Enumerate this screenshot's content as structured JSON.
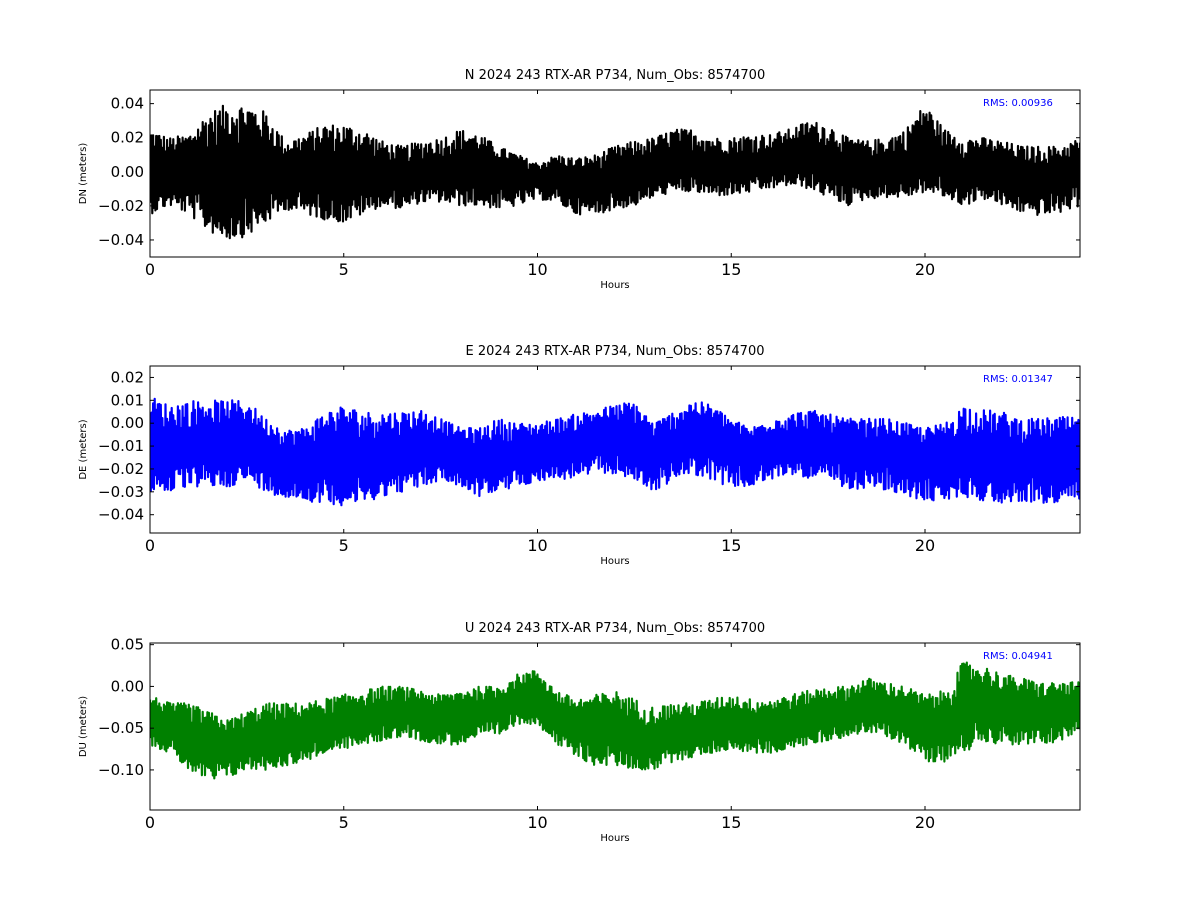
{
  "chart_data": [
    {
      "type": "line",
      "title": "N 2024 243 RTX-AR  P734, Num_Obs: 8574700",
      "xlabel": "Hours",
      "ylabel": "DN (meters)",
      "color": "#000000",
      "xlim": [
        0,
        24
      ],
      "ylim": [
        -0.05,
        0.048
      ],
      "xticks": [
        0,
        5,
        10,
        15,
        20
      ],
      "yticks": [
        -0.04,
        -0.02,
        0.0,
        0.02,
        0.04
      ],
      "ytick_labels": [
        "−0.04",
        "−0.02",
        "0.00",
        "0.02",
        "0.04"
      ],
      "grid": false,
      "annotation": "RMS:  0.00936",
      "annotation_color": "#0000ff",
      "series": [
        {
          "x": [
            0,
            0.5,
            1,
            1.5,
            2,
            2.5,
            3,
            3.5,
            4,
            4.5,
            5,
            5.5,
            6,
            6.5,
            7,
            7.5,
            8,
            8.5,
            9,
            9.5,
            10,
            10.5,
            11,
            11.5,
            12,
            12.5,
            13,
            13.5,
            14,
            14.5,
            15,
            15.5,
            16,
            16.5,
            17,
            17.5,
            18,
            18.5,
            19,
            19.5,
            20,
            20.5,
            21,
            21.5,
            22,
            22.5,
            23,
            23.5,
            24
          ],
          "mean": [
            0.0,
            0.0,
            0.0,
            -0.002,
            0.0,
            0.0,
            -0.002,
            -0.002,
            0.0,
            0.0,
            -0.004,
            -0.002,
            -0.003,
            -0.004,
            -0.002,
            0.0,
            0.0,
            0.0,
            -0.002,
            -0.002,
            -0.004,
            -0.003,
            -0.007,
            -0.006,
            -0.004,
            -0.003,
            0.0,
            0.003,
            0.004,
            0.002,
            0.003,
            0.002,
            0.004,
            0.006,
            0.008,
            0.004,
            0.002,
            0.0,
            0.0,
            0.002,
            0.008,
            0.004,
            0.0,
            0.002,
            -0.002,
            -0.004,
            -0.004,
            -0.003,
            0.0
          ],
          "upper": [
            0.025,
            0.02,
            0.022,
            0.035,
            0.04,
            0.04,
            0.035,
            0.018,
            0.022,
            0.028,
            0.028,
            0.025,
            0.018,
            0.015,
            0.018,
            0.02,
            0.025,
            0.022,
            0.015,
            0.01,
            0.005,
            0.01,
            0.008,
            0.01,
            0.015,
            0.018,
            0.02,
            0.025,
            0.025,
            0.02,
            0.02,
            0.022,
            0.022,
            0.025,
            0.03,
            0.028,
            0.02,
            0.018,
            0.02,
            0.025,
            0.04,
            0.025,
            0.02,
            0.02,
            0.018,
            0.015,
            0.015,
            0.015,
            0.02
          ],
          "lower": [
            -0.025,
            -0.02,
            -0.025,
            -0.035,
            -0.04,
            -0.038,
            -0.03,
            -0.022,
            -0.025,
            -0.028,
            -0.03,
            -0.025,
            -0.02,
            -0.022,
            -0.018,
            -0.018,
            -0.02,
            -0.02,
            -0.022,
            -0.02,
            -0.016,
            -0.018,
            -0.025,
            -0.025,
            -0.022,
            -0.02,
            -0.015,
            -0.012,
            -0.012,
            -0.014,
            -0.014,
            -0.012,
            -0.01,
            -0.008,
            -0.01,
            -0.015,
            -0.02,
            -0.016,
            -0.015,
            -0.015,
            -0.012,
            -0.015,
            -0.02,
            -0.016,
            -0.02,
            -0.024,
            -0.026,
            -0.024,
            -0.02
          ]
        }
      ]
    },
    {
      "type": "line",
      "title": "E 2024 243 RTX-AR  P734, Num_Obs: 8574700",
      "xlabel": "Hours",
      "ylabel": "DE (meters)",
      "color": "#0000ff",
      "xlim": [
        0,
        24
      ],
      "ylim": [
        -0.048,
        0.025
      ],
      "xticks": [
        0,
        5,
        10,
        15,
        20
      ],
      "yticks": [
        -0.04,
        -0.03,
        -0.02,
        -0.01,
        0.0,
        0.01,
        0.02
      ],
      "ytick_labels": [
        "−0.04",
        "−0.03",
        "−0.02",
        "−0.01",
        "0.00",
        "0.01",
        "0.02"
      ],
      "grid": false,
      "annotation": "RMS:  0.01347",
      "annotation_color": "#0000ff",
      "series": [
        {
          "x": [
            0,
            0.5,
            1,
            1.5,
            2,
            2.5,
            3,
            3.5,
            4,
            4.5,
            5,
            5.5,
            6,
            6.5,
            7,
            7.5,
            8,
            8.5,
            9,
            9.5,
            10,
            10.5,
            11,
            11.5,
            12,
            12.5,
            13,
            13.5,
            14,
            14.5,
            15,
            15.5,
            16,
            16.5,
            17,
            17.5,
            18,
            18.5,
            19,
            19.5,
            20,
            20.5,
            21,
            21.5,
            22,
            22.5,
            23,
            23.5,
            24
          ],
          "mean": [
            -0.01,
            -0.012,
            -0.011,
            -0.01,
            -0.008,
            -0.01,
            -0.013,
            -0.015,
            -0.016,
            -0.016,
            -0.015,
            -0.016,
            -0.014,
            -0.012,
            -0.011,
            -0.01,
            -0.012,
            -0.016,
            -0.015,
            -0.013,
            -0.012,
            -0.01,
            -0.01,
            -0.008,
            -0.007,
            -0.01,
            -0.013,
            -0.01,
            -0.006,
            -0.007,
            -0.011,
            -0.014,
            -0.01,
            -0.01,
            -0.01,
            -0.01,
            -0.013,
            -0.012,
            -0.012,
            -0.015,
            -0.016,
            -0.017,
            -0.013,
            -0.015,
            -0.016,
            -0.016,
            -0.016,
            -0.017,
            -0.015
          ],
          "upper": [
            0.012,
            0.008,
            0.01,
            0.01,
            0.01,
            0.01,
            0.002,
            -0.003,
            -0.002,
            0.005,
            0.008,
            0.005,
            0.005,
            0.005,
            0.006,
            0.002,
            -0.002,
            -0.002,
            0.002,
            0.0,
            0.0,
            0.002,
            0.004,
            0.006,
            0.008,
            0.01,
            0.0,
            0.005,
            0.01,
            0.008,
            0.002,
            -0.002,
            0.002,
            0.004,
            0.006,
            0.004,
            0.002,
            0.002,
            0.002,
            0.0,
            -0.002,
            0.0,
            0.008,
            0.006,
            0.005,
            0.002,
            0.002,
            0.003,
            0.002
          ],
          "lower": [
            -0.03,
            -0.03,
            -0.028,
            -0.028,
            -0.028,
            -0.025,
            -0.03,
            -0.033,
            -0.034,
            -0.035,
            -0.036,
            -0.035,
            -0.032,
            -0.03,
            -0.028,
            -0.025,
            -0.028,
            -0.032,
            -0.03,
            -0.028,
            -0.025,
            -0.025,
            -0.024,
            -0.022,
            -0.022,
            -0.025,
            -0.03,
            -0.025,
            -0.022,
            -0.025,
            -0.028,
            -0.028,
            -0.025,
            -0.022,
            -0.024,
            -0.025,
            -0.03,
            -0.028,
            -0.03,
            -0.032,
            -0.034,
            -0.034,
            -0.032,
            -0.034,
            -0.035,
            -0.034,
            -0.035,
            -0.036,
            -0.034
          ]
        }
      ]
    },
    {
      "type": "line",
      "title": "U 2024 243 RTX-AR  P734, Num_Obs: 8574700",
      "xlabel": "Hours",
      "ylabel": "DU (meters)",
      "color": "#008000",
      "xlim": [
        0,
        24
      ],
      "ylim": [
        -0.148,
        0.052
      ],
      "xticks": [
        0,
        5,
        10,
        15,
        20
      ],
      "yticks": [
        -0.1,
        -0.05,
        0.0,
        0.05
      ],
      "ytick_labels": [
        "−0.10",
        "−0.05",
        "0.00",
        "0.05"
      ],
      "grid": false,
      "annotation": "RMS:  0.04941",
      "annotation_color": "#0000ff",
      "series": [
        {
          "x": [
            0,
            0.5,
            1,
            1.5,
            2,
            2.5,
            3,
            3.5,
            4,
            4.5,
            5,
            5.5,
            6,
            6.5,
            7,
            7.5,
            8,
            8.5,
            9,
            9.5,
            10,
            10.5,
            11,
            11.5,
            12,
            12.5,
            13,
            13.5,
            14,
            14.5,
            15,
            15.5,
            16,
            16.5,
            17,
            17.5,
            18,
            18.5,
            19,
            19.5,
            20,
            20.5,
            21,
            21.5,
            22,
            22.5,
            23,
            23.5,
            24
          ],
          "mean": [
            -0.04,
            -0.05,
            -0.06,
            -0.07,
            -0.07,
            -0.065,
            -0.06,
            -0.06,
            -0.055,
            -0.05,
            -0.045,
            -0.04,
            -0.035,
            -0.03,
            -0.035,
            -0.04,
            -0.035,
            -0.03,
            -0.03,
            -0.015,
            -0.01,
            -0.04,
            -0.05,
            -0.055,
            -0.05,
            -0.06,
            -0.065,
            -0.06,
            -0.055,
            -0.05,
            -0.045,
            -0.05,
            -0.05,
            -0.045,
            -0.04,
            -0.035,
            -0.03,
            -0.025,
            -0.03,
            -0.035,
            -0.05,
            -0.05,
            -0.03,
            -0.02,
            -0.025,
            -0.03,
            -0.035,
            -0.03,
            -0.025
          ],
          "upper": [
            -0.01,
            -0.02,
            -0.02,
            -0.03,
            -0.04,
            -0.03,
            -0.02,
            -0.02,
            -0.02,
            -0.015,
            -0.01,
            -0.005,
            0.0,
            0.0,
            -0.005,
            -0.01,
            -0.005,
            0.0,
            0.0,
            0.015,
            0.02,
            -0.005,
            -0.015,
            -0.01,
            -0.005,
            -0.015,
            -0.025,
            -0.02,
            -0.02,
            -0.015,
            -0.01,
            -0.015,
            -0.015,
            -0.01,
            -0.005,
            0.0,
            0.0,
            0.01,
            0.005,
            0.0,
            -0.01,
            -0.005,
            0.03,
            0.025,
            0.015,
            0.01,
            0.005,
            0.005,
            0.005
          ],
          "lower": [
            -0.07,
            -0.08,
            -0.1,
            -0.115,
            -0.11,
            -0.1,
            -0.1,
            -0.095,
            -0.09,
            -0.08,
            -0.075,
            -0.07,
            -0.065,
            -0.06,
            -0.065,
            -0.07,
            -0.07,
            -0.06,
            -0.06,
            -0.045,
            -0.045,
            -0.07,
            -0.085,
            -0.095,
            -0.095,
            -0.1,
            -0.1,
            -0.09,
            -0.085,
            -0.08,
            -0.075,
            -0.08,
            -0.08,
            -0.075,
            -0.07,
            -0.065,
            -0.06,
            -0.055,
            -0.06,
            -0.07,
            -0.09,
            -0.09,
            -0.08,
            -0.065,
            -0.07,
            -0.07,
            -0.07,
            -0.065,
            -0.055
          ]
        }
      ]
    }
  ]
}
